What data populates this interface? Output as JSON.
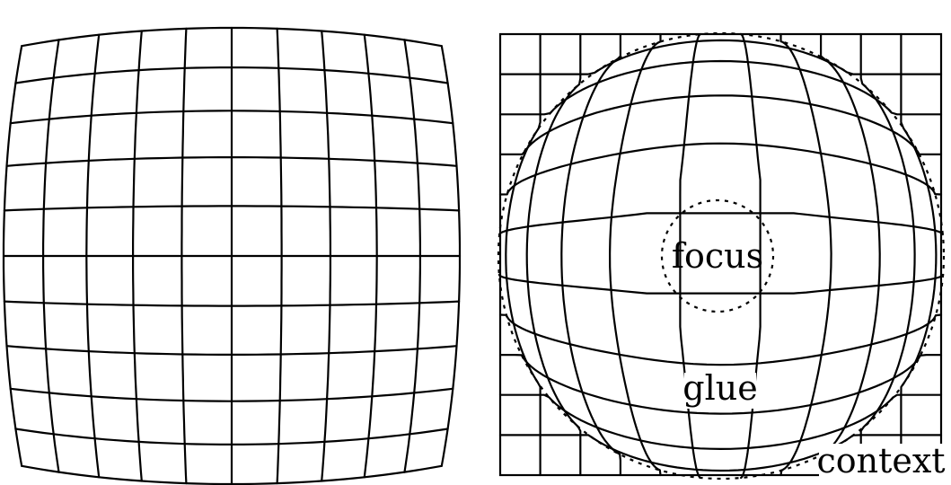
{
  "labels": {
    "focus": "focus",
    "glue": "glue",
    "context": "context"
  },
  "colors": {
    "line": "#000000",
    "background": "#ffffff"
  }
}
